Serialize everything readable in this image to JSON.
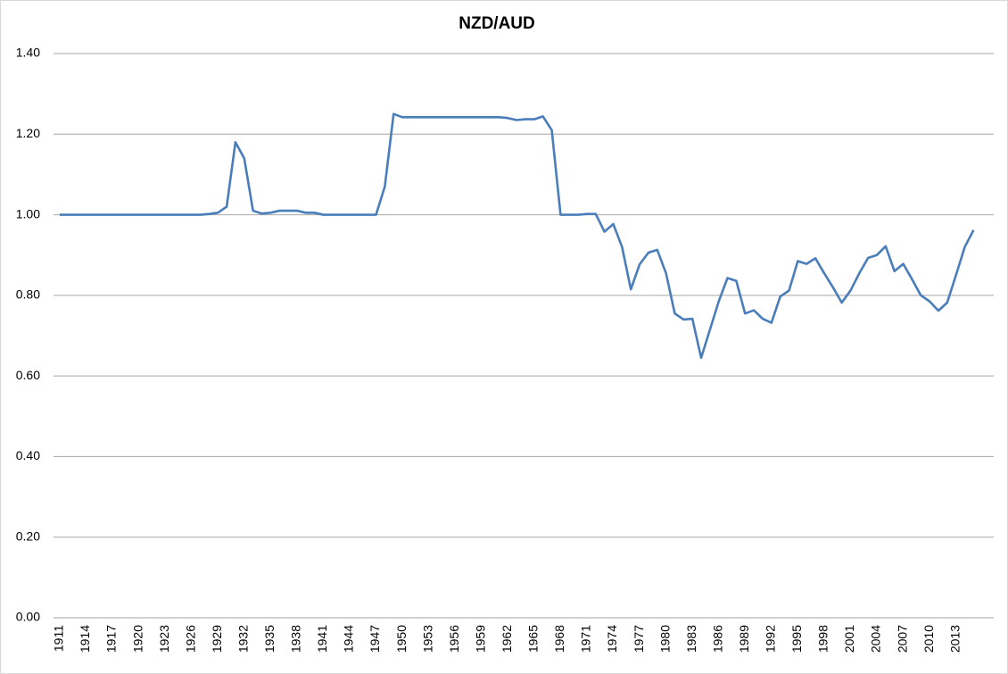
{
  "chart_data": {
    "type": "line",
    "title": "NZD/AUD",
    "categories": [
      "1911",
      null,
      null,
      "1914",
      null,
      null,
      "1917",
      null,
      null,
      "1920",
      null,
      null,
      "1923",
      null,
      null,
      "1926",
      null,
      null,
      "1929",
      null,
      null,
      "1932",
      null,
      null,
      "1935",
      null,
      null,
      "1938",
      null,
      null,
      "1941",
      null,
      null,
      "1944",
      null,
      null,
      "1947",
      null,
      null,
      "1950",
      null,
      null,
      "1953",
      null,
      null,
      "1956",
      null,
      null,
      "1959",
      null,
      null,
      "1962",
      null,
      null,
      "1965",
      null,
      null,
      "1968",
      null,
      null,
      "1971",
      null,
      null,
      "1974",
      null,
      null,
      "1977",
      null,
      null,
      "1980",
      null,
      null,
      "1983",
      null,
      null,
      "1986",
      null,
      null,
      "1989",
      null,
      null,
      "1992",
      null,
      null,
      "1995",
      null,
      null,
      "1998",
      null,
      null,
      "2001",
      null,
      null,
      "2004",
      null,
      null,
      "2007",
      null,
      null,
      "2010",
      null,
      null,
      "2013",
      null,
      null
    ],
    "values": [
      1.0,
      1.0,
      1.0,
      1.0,
      1.0,
      1.0,
      1.0,
      1.0,
      1.0,
      1.0,
      1.0,
      1.0,
      1.0,
      1.0,
      1.0,
      1.0,
      1.0,
      1.002,
      1.005,
      1.02,
      1.18,
      1.14,
      1.01,
      1.003,
      1.005,
      1.01,
      1.01,
      1.01,
      1.005,
      1.005,
      1.0,
      1.0,
      1.0,
      1.0,
      1.0,
      1.0,
      1.0,
      1.07,
      1.25,
      1.242,
      1.242,
      1.242,
      1.242,
      1.242,
      1.242,
      1.242,
      1.242,
      1.242,
      1.242,
      1.242,
      1.242,
      1.24,
      1.235,
      1.237,
      1.237,
      1.244,
      1.21,
      1.0,
      1.0,
      1.0,
      1.002,
      1.002,
      0.958,
      0.977,
      0.92,
      0.815,
      0.877,
      0.906,
      0.913,
      0.855,
      0.755,
      0.74,
      0.742,
      0.645,
      0.715,
      0.785,
      0.843,
      0.836,
      0.755,
      0.763,
      0.742,
      0.732,
      0.797,
      0.812,
      0.885,
      0.878,
      0.892,
      0.855,
      0.82,
      0.782,
      0.812,
      0.855,
      0.893,
      0.9,
      0.922,
      0.86,
      0.878,
      0.84,
      0.8,
      0.785,
      0.762,
      0.782,
      0.85,
      0.92,
      0.962
    ],
    "color": "#4a7ebb",
    "ylim": [
      0,
      1.4
    ],
    "yticks": [
      {
        "value": 0,
        "label": "0.00"
      },
      {
        "value": 0.2,
        "label": "0.20"
      },
      {
        "value": 0.4,
        "label": "0.40"
      },
      {
        "value": 0.6,
        "label": "0.60"
      },
      {
        "value": 0.8,
        "label": "0.80"
      },
      {
        "value": 1.0,
        "label": "1.00"
      },
      {
        "value": 1.2,
        "label": "1.20"
      },
      {
        "value": 1.4,
        "label": "1.40"
      }
    ],
    "grid": true
  }
}
